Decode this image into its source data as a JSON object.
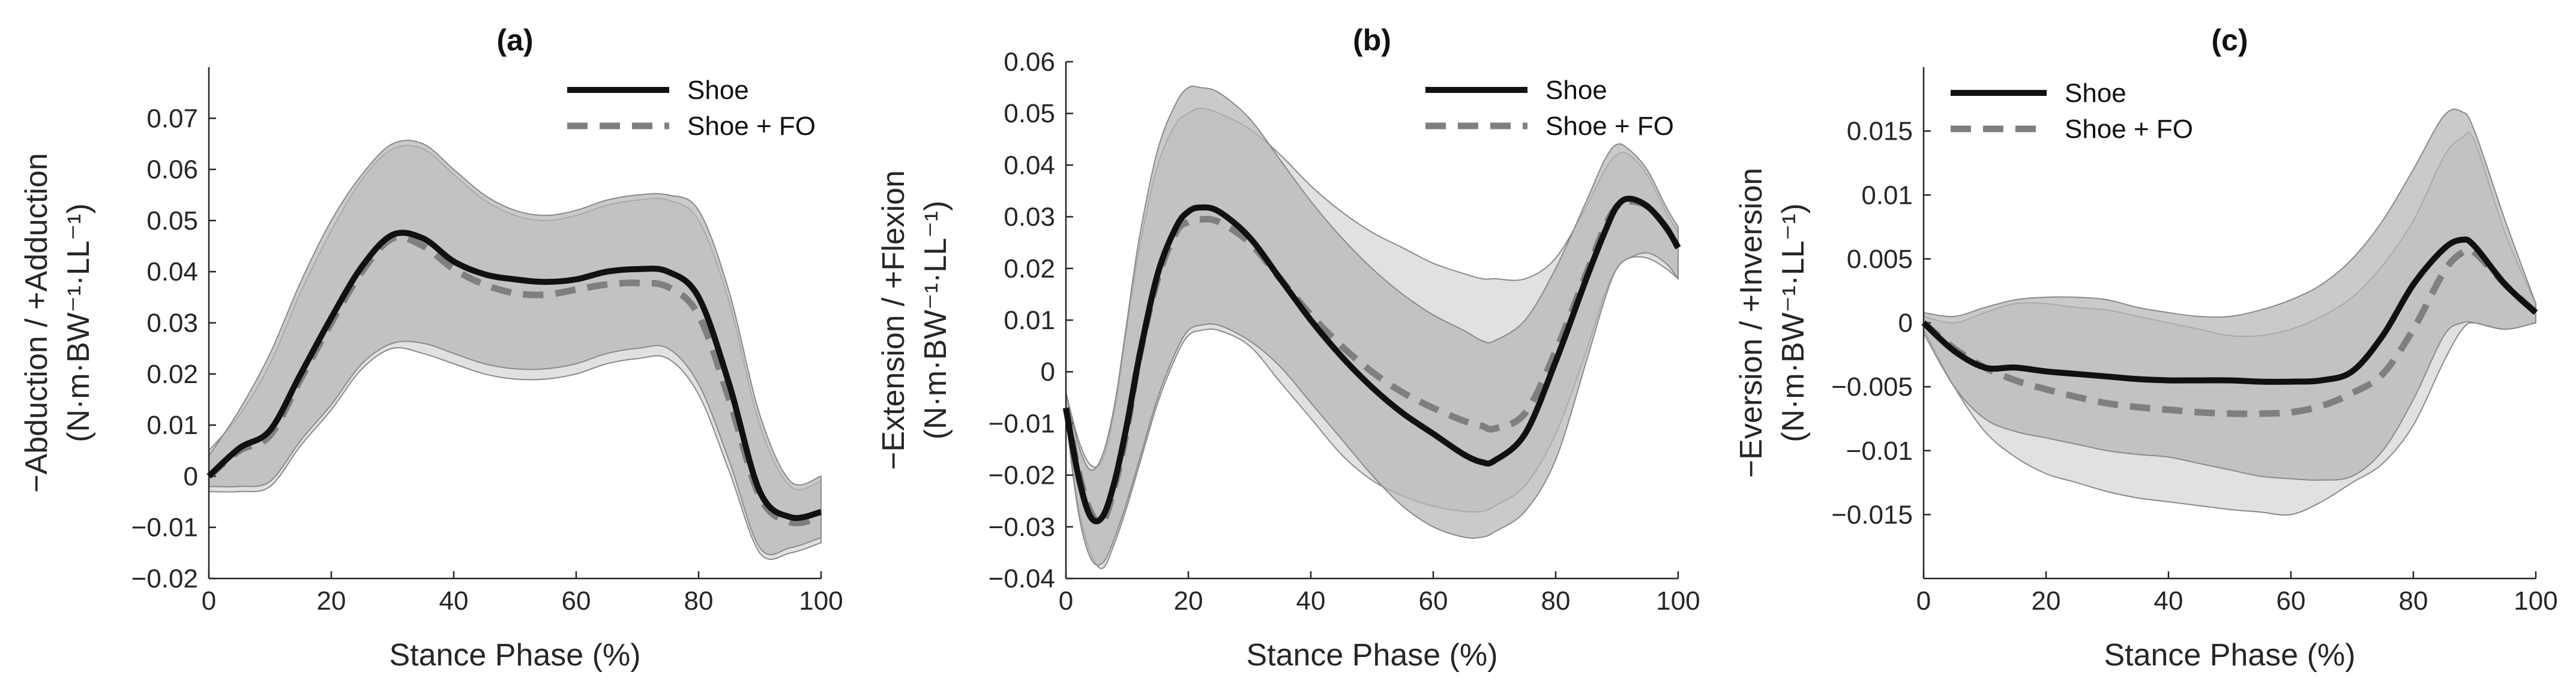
{
  "chart_data": [
    {
      "type": "line",
      "title": "(a)",
      "xlabel": "Stance Phase (%)",
      "ylabel_line1": "−Abduction / +Adduction",
      "ylabel_line2": "(N·m·BW⁻¹·LL⁻¹)",
      "xlim": [
        0,
        100
      ],
      "ylim": [
        -0.02,
        0.08
      ],
      "xticks": [
        0,
        20,
        40,
        60,
        80,
        100
      ],
      "xtick_labels": [
        "0",
        "20",
        "40",
        "60",
        "80",
        "100"
      ],
      "yticks": [
        -0.02,
        -0.01,
        0,
        0.01,
        0.02,
        0.03,
        0.04,
        0.05,
        0.06,
        0.07
      ],
      "ytick_labels": [
        "−0.02",
        "−0.01",
        "0",
        "0.01",
        "0.02",
        "0.03",
        "0.04",
        "0.05",
        "0.06",
        "0.07"
      ],
      "legend_position": "top-right",
      "x": [
        0,
        5,
        10,
        15,
        20,
        25,
        30,
        35,
        40,
        45,
        50,
        55,
        60,
        65,
        70,
        75,
        80,
        85,
        90,
        95,
        100
      ],
      "series": [
        {
          "name": "Shoe",
          "style": "solid",
          "color": "#111111",
          "values": [
            0.0,
            0.0055,
            0.009,
            0.02,
            0.031,
            0.041,
            0.0472,
            0.0465,
            0.042,
            0.0395,
            0.0385,
            0.038,
            0.0385,
            0.04,
            0.0405,
            0.04,
            0.035,
            0.018,
            -0.003,
            -0.008,
            -0.007
          ],
          "band_upper": [
            0.004,
            0.013,
            0.024,
            0.038,
            0.05,
            0.059,
            0.065,
            0.065,
            0.06,
            0.055,
            0.052,
            0.051,
            0.052,
            0.054,
            0.055,
            0.055,
            0.052,
            0.036,
            0.012,
            -0.001,
            0.0
          ],
          "band_lower": [
            -0.002,
            -0.002,
            -0.001,
            0.007,
            0.014,
            0.022,
            0.026,
            0.026,
            0.024,
            0.022,
            0.021,
            0.021,
            0.022,
            0.024,
            0.025,
            0.025,
            0.018,
            0.003,
            -0.014,
            -0.014,
            -0.012
          ]
        },
        {
          "name": "Shoe + FO",
          "style": "dashed",
          "color": "#7f7f7f",
          "values": [
            0.0,
            0.005,
            0.008,
            0.019,
            0.03,
            0.04,
            0.0465,
            0.045,
            0.0405,
            0.0375,
            0.0358,
            0.0355,
            0.0365,
            0.0375,
            0.0378,
            0.037,
            0.0315,
            0.015,
            -0.004,
            -0.009,
            -0.008
          ],
          "band_upper": [
            0.005,
            0.012,
            0.022,
            0.036,
            0.048,
            0.058,
            0.064,
            0.064,
            0.059,
            0.054,
            0.051,
            0.05,
            0.051,
            0.053,
            0.054,
            0.054,
            0.05,
            0.034,
            0.01,
            -0.002,
            -0.001
          ],
          "band_lower": [
            -0.003,
            -0.003,
            -0.002,
            0.006,
            0.013,
            0.021,
            0.025,
            0.024,
            0.022,
            0.02,
            0.019,
            0.019,
            0.02,
            0.022,
            0.023,
            0.023,
            0.016,
            0.001,
            -0.015,
            -0.015,
            -0.013
          ]
        }
      ]
    },
    {
      "type": "line",
      "title": "(b)",
      "xlabel": "Stance Phase (%)",
      "ylabel_line1": "−Extension / +Flexion",
      "ylabel_line2": "(N·m·BW⁻¹·LL⁻¹)",
      "xlim": [
        0,
        100
      ],
      "ylim": [
        -0.04,
        0.06
      ],
      "xticks": [
        0,
        20,
        40,
        60,
        80,
        100
      ],
      "xtick_labels": [
        "0",
        "20",
        "40",
        "60",
        "80",
        "100"
      ],
      "yticks": [
        -0.04,
        -0.03,
        -0.02,
        -0.01,
        0,
        0.01,
        0.02,
        0.03,
        0.04,
        0.05,
        0.06
      ],
      "ytick_labels": [
        "−0.04",
        "−0.03",
        "−0.02",
        "−0.01",
        "0",
        "0.01",
        "0.02",
        "0.03",
        "0.04",
        "0.05",
        "0.06"
      ],
      "legend_position": "top-right",
      "x": [
        0,
        2,
        4,
        6,
        8,
        10,
        12,
        15,
        18,
        20,
        22,
        25,
        30,
        35,
        40,
        45,
        50,
        55,
        60,
        65,
        68,
        70,
        75,
        80,
        85,
        88,
        90,
        92,
        95,
        98,
        100
      ],
      "series": [
        {
          "name": "Shoe",
          "style": "solid",
          "color": "#111111",
          "values": [
            -0.007,
            -0.02,
            -0.028,
            -0.028,
            -0.021,
            -0.01,
            0.003,
            0.019,
            0.028,
            0.031,
            0.0318,
            0.031,
            0.026,
            0.018,
            0.01,
            0.003,
            -0.003,
            -0.008,
            -0.012,
            -0.016,
            -0.0175,
            -0.0172,
            -0.012,
            0.002,
            0.018,
            0.027,
            0.032,
            0.0335,
            0.032,
            0.028,
            0.024
          ],
          "band_upper": [
            -0.004,
            -0.014,
            -0.019,
            -0.016,
            -0.006,
            0.01,
            0.026,
            0.043,
            0.052,
            0.055,
            0.055,
            0.054,
            0.049,
            0.041,
            0.033,
            0.026,
            0.02,
            0.015,
            0.011,
            0.008,
            0.006,
            0.006,
            0.01,
            0.02,
            0.033,
            0.041,
            0.044,
            0.043,
            0.039,
            0.032,
            0.028
          ],
          "band_lower": [
            -0.009,
            -0.027,
            -0.036,
            -0.037,
            -0.032,
            -0.025,
            -0.017,
            -0.005,
            0.004,
            0.008,
            0.009,
            0.009,
            0.006,
            0.001,
            -0.006,
            -0.013,
            -0.02,
            -0.026,
            -0.03,
            -0.032,
            -0.032,
            -0.031,
            -0.027,
            -0.017,
            0.002,
            0.014,
            0.02,
            0.022,
            0.023,
            0.021,
            0.018
          ]
        },
        {
          "name": "Shoe + FO",
          "style": "dashed",
          "color": "#7f7f7f",
          "values": [
            -0.007,
            -0.019,
            -0.027,
            -0.029,
            -0.022,
            -0.011,
            0.003,
            0.018,
            0.027,
            0.029,
            0.0295,
            0.029,
            0.025,
            0.018,
            0.011,
            0.005,
            0.0,
            -0.004,
            -0.007,
            -0.0095,
            -0.0105,
            -0.011,
            -0.008,
            0.004,
            0.019,
            0.028,
            0.032,
            0.033,
            0.032,
            0.028,
            0.024
          ],
          "band_upper": [
            -0.004,
            -0.013,
            -0.018,
            -0.017,
            -0.007,
            0.009,
            0.024,
            0.04,
            0.048,
            0.05,
            0.051,
            0.05,
            0.047,
            0.042,
            0.036,
            0.031,
            0.027,
            0.024,
            0.021,
            0.019,
            0.018,
            0.018,
            0.018,
            0.022,
            0.032,
            0.039,
            0.042,
            0.042,
            0.038,
            0.031,
            0.027
          ],
          "band_lower": [
            -0.009,
            -0.026,
            -0.035,
            -0.038,
            -0.033,
            -0.026,
            -0.018,
            -0.006,
            0.003,
            0.007,
            0.008,
            0.008,
            0.005,
            -0.002,
            -0.009,
            -0.016,
            -0.021,
            -0.024,
            -0.026,
            -0.027,
            -0.027,
            -0.026,
            -0.022,
            -0.012,
            0.004,
            0.015,
            0.02,
            0.022,
            0.022,
            0.02,
            0.018
          ]
        }
      ]
    },
    {
      "type": "line",
      "title": "(c)",
      "xlabel": "Stance Phase (%)",
      "ylabel_line1": "−Eversion / +Inversion",
      "ylabel_line2": "(N·m·BW⁻¹·LL⁻¹)",
      "xlim": [
        0,
        100
      ],
      "ylim": [
        -0.02,
        0.02
      ],
      "xticks": [
        0,
        20,
        40,
        60,
        80,
        100
      ],
      "xtick_labels": [
        "0",
        "20",
        "40",
        "60",
        "80",
        "100"
      ],
      "yticks": [
        -0.015,
        -0.01,
        -0.005,
        0,
        0.005,
        0.01,
        0.015
      ],
      "ytick_labels": [
        "−0.015",
        "−0.01",
        "−0.005",
        "0",
        "0.005",
        "0.01",
        "0.015"
      ],
      "legend_position": "top-left",
      "x": [
        0,
        5,
        10,
        15,
        20,
        25,
        30,
        35,
        40,
        45,
        50,
        55,
        60,
        65,
        70,
        75,
        80,
        85,
        88,
        90,
        95,
        100
      ],
      "series": [
        {
          "name": "Shoe",
          "style": "solid",
          "color": "#111111",
          "values": [
            0.0,
            -0.0022,
            -0.0035,
            -0.0035,
            -0.0038,
            -0.004,
            -0.0042,
            -0.0044,
            -0.0045,
            -0.0045,
            -0.0045,
            -0.0046,
            -0.0046,
            -0.0045,
            -0.0038,
            -0.001,
            0.003,
            0.0058,
            0.0065,
            0.006,
            0.003,
            0.0008
          ],
          "band_upper": [
            0.0008,
            0.0005,
            0.0012,
            0.0018,
            0.002,
            0.002,
            0.0018,
            0.0012,
            0.0008,
            0.0005,
            0.0005,
            0.001,
            0.0018,
            0.003,
            0.005,
            0.008,
            0.012,
            0.0162,
            0.0165,
            0.015,
            0.008,
            0.0015
          ],
          "band_lower": [
            -0.0008,
            -0.005,
            -0.0075,
            -0.0085,
            -0.009,
            -0.0095,
            -0.01,
            -0.0103,
            -0.0105,
            -0.011,
            -0.0115,
            -0.012,
            -0.0122,
            -0.0123,
            -0.012,
            -0.01,
            -0.006,
            -0.001,
            0.0,
            0.0,
            -0.0005,
            0.0
          ]
        },
        {
          "name": "Shoe + FO",
          "style": "dashed",
          "color": "#7f7f7f",
          "values": [
            0.0,
            -0.002,
            -0.0035,
            -0.0045,
            -0.0052,
            -0.0058,
            -0.0063,
            -0.0066,
            -0.0068,
            -0.007,
            -0.0071,
            -0.0071,
            -0.007,
            -0.0065,
            -0.0055,
            -0.004,
            -0.0005,
            0.004,
            0.0055,
            0.0055,
            0.003,
            0.0008
          ],
          "band_upper": [
            0.0005,
            0.0,
            0.0008,
            0.0015,
            0.0015,
            0.0012,
            0.001,
            0.0005,
            0.0,
            -0.0005,
            -0.001,
            -0.001,
            -0.0005,
            0.0005,
            0.002,
            0.0045,
            0.008,
            0.013,
            0.0145,
            0.0142,
            0.007,
            0.0015
          ],
          "band_lower": [
            -0.0005,
            -0.005,
            -0.0085,
            -0.0105,
            -0.0118,
            -0.0125,
            -0.0132,
            -0.0137,
            -0.014,
            -0.0143,
            -0.0146,
            -0.0148,
            -0.015,
            -0.014,
            -0.0125,
            -0.011,
            -0.008,
            -0.003,
            -0.0005,
            0.0,
            -0.0005,
            0.0
          ]
        }
      ]
    }
  ]
}
